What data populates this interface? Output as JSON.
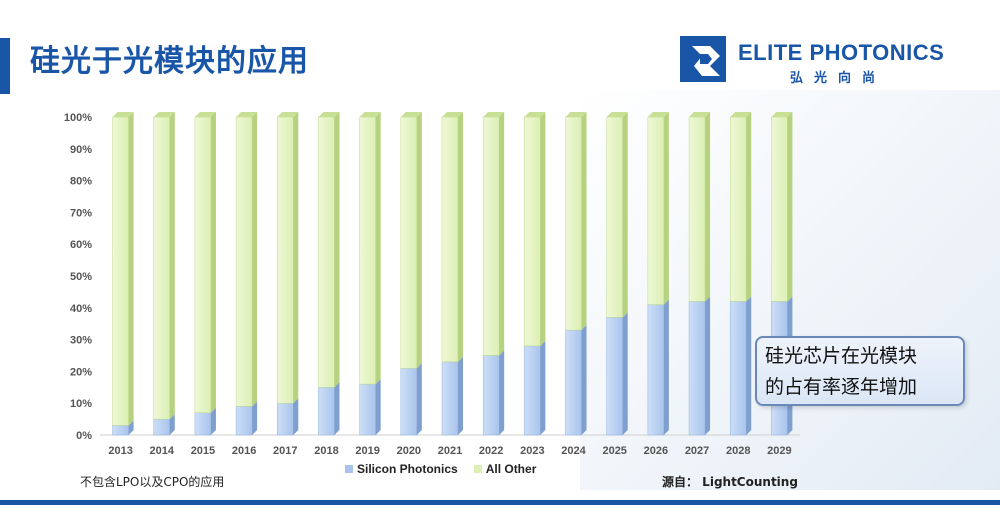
{
  "page": {
    "title": "硅光于光模块的应用",
    "logo_text": "ELITE PHOTONICS",
    "logo_subtext": "弘光向尚",
    "note": "不包含LPO以及CPO的应用",
    "source": "源自： LightCounting",
    "callout_line1": "硅光芯片在光模块",
    "callout_line2": "的占有率逐年增加"
  },
  "colors": {
    "brand": "#1a56a8",
    "silicon": "#a9c4ec",
    "other": "#dcefb4"
  },
  "chart_data": {
    "type": "bar",
    "stacked": true,
    "percent": true,
    "categories": [
      "2013",
      "2014",
      "2015",
      "2016",
      "2017",
      "2018",
      "2019",
      "2020",
      "2021",
      "2022",
      "2023",
      "2024",
      "2025",
      "2026",
      "2027",
      "2028",
      "2029"
    ],
    "series": [
      {
        "name": "Silicon Photonics",
        "values": [
          3,
          5,
          7,
          9,
          10,
          15,
          16,
          21,
          23,
          25,
          28,
          33,
          37,
          41,
          42,
          42,
          42
        ]
      },
      {
        "name": "All Other",
        "values": [
          97,
          95,
          93,
          91,
          90,
          85,
          84,
          79,
          77,
          75,
          72,
          67,
          63,
          59,
          58,
          58,
          58
        ]
      }
    ],
    "ylim": [
      0,
      100
    ],
    "yticks": [
      "0%",
      "10%",
      "20%",
      "30%",
      "40%",
      "50%",
      "60%",
      "70%",
      "80%",
      "90%",
      "100%"
    ],
    "xlabel": "",
    "ylabel": "",
    "legend": "bottom"
  }
}
